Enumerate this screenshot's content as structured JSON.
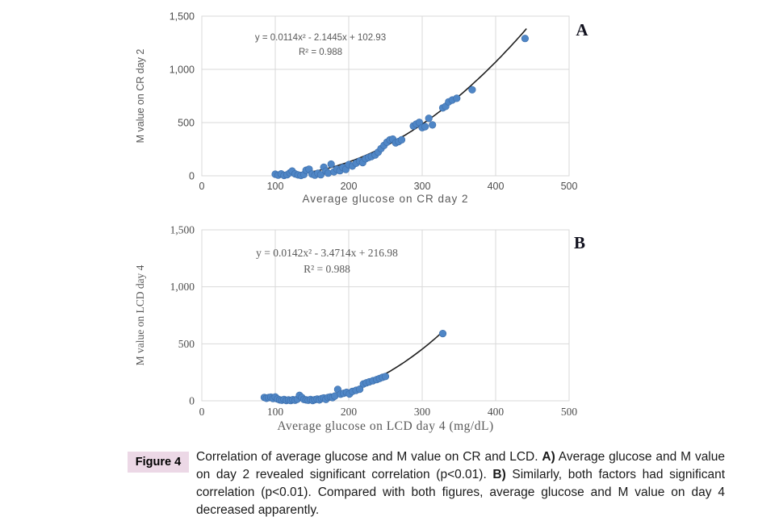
{
  "figure": {
    "label": "Figure 4",
    "caption": {
      "segments": [
        {
          "text": "Correlation of average glucose and M value on CR and LCD. ",
          "bold": false
        },
        {
          "text": "A)",
          "bold": true
        },
        {
          "text": " Average glucose and M value on day 2 revealed significant correlation (p<0.01). ",
          "bold": false
        },
        {
          "text": "B)",
          "bold": true
        },
        {
          "text": " Similarly, both factors had significant correlation (p<0.01). Compared with both figures, average glucose and M value on day 4 decreased apparently.",
          "bold": false
        }
      ]
    }
  },
  "colors": {
    "point": "#4f86c6",
    "point_edge": "#3b6ca8",
    "trend": "#1f1f1f",
    "grid": "#d9d9d9",
    "tick_text": "#4d4d4d",
    "axis_title": "#595959",
    "equation_text": "#595959",
    "panel_label": "#12121f",
    "caption_text": "#1a1a1a",
    "figure_label_bg": "#ecd8e6",
    "figure_label_text": "#000000"
  },
  "chart_data": [
    {
      "type": "scatter",
      "panel_label": "A",
      "xlabel": "Average glucose on CR day 2",
      "ylabel": "M value on CR day 2",
      "xlim": [
        0,
        500
      ],
      "ylim": [
        0,
        1500
      ],
      "xticks": [
        0,
        100,
        200,
        300,
        400,
        500
      ],
      "xtick_labels": [
        "0",
        "100",
        "200",
        "300",
        "400",
        "500"
      ],
      "yticks": [
        0,
        500,
        1000,
        1500
      ],
      "ytick_labels": [
        "0",
        "500",
        "1,000",
        "1,500"
      ],
      "grid": true,
      "legend": "none",
      "equation": "y = 0.0114x² - 2.1445x + 102.93",
      "r_squared": "R² = 0.988",
      "trend": {
        "a": 0.0114,
        "b": -2.1445,
        "c": 102.93,
        "x_start": 97,
        "x_end": 443
      },
      "font": "sans",
      "points": [
        [
          100,
          15
        ],
        [
          104,
          6
        ],
        [
          108,
          18
        ],
        [
          112,
          4
        ],
        [
          116,
          10
        ],
        [
          120,
          28
        ],
        [
          123,
          45
        ],
        [
          127,
          18
        ],
        [
          131,
          8
        ],
        [
          135,
          4
        ],
        [
          139,
          12
        ],
        [
          142,
          52
        ],
        [
          146,
          62
        ],
        [
          150,
          16
        ],
        [
          154,
          6
        ],
        [
          158,
          24
        ],
        [
          162,
          10
        ],
        [
          166,
          80
        ],
        [
          169,
          45
        ],
        [
          172,
          25
        ],
        [
          176,
          110
        ],
        [
          180,
          38
        ],
        [
          184,
          62
        ],
        [
          188,
          48
        ],
        [
          192,
          78
        ],
        [
          196,
          60
        ],
        [
          200,
          105
        ],
        [
          205,
          92
        ],
        [
          210,
          118
        ],
        [
          215,
          138
        ],
        [
          219,
          124
        ],
        [
          223,
          160
        ],
        [
          227,
          172
        ],
        [
          231,
          182
        ],
        [
          236,
          196
        ],
        [
          240,
          222
        ],
        [
          244,
          255
        ],
        [
          248,
          285
        ],
        [
          252,
          315
        ],
        [
          256,
          338
        ],
        [
          260,
          345
        ],
        [
          264,
          310
        ],
        [
          268,
          322
        ],
        [
          272,
          338
        ],
        [
          288,
          468
        ],
        [
          292,
          486
        ],
        [
          296,
          502
        ],
        [
          300,
          452
        ],
        [
          304,
          462
        ],
        [
          309,
          540
        ],
        [
          314,
          478
        ],
        [
          328,
          638
        ],
        [
          332,
          652
        ],
        [
          336,
          695
        ],
        [
          341,
          712
        ],
        [
          347,
          728
        ],
        [
          368,
          808
        ],
        [
          440,
          1290
        ]
      ]
    },
    {
      "type": "scatter",
      "panel_label": "B",
      "xlabel": "Average glucose on LCD day 4 (mg/dL)",
      "ylabel": "M value on LCD day 4",
      "xlim": [
        0,
        500
      ],
      "ylim": [
        0,
        1500
      ],
      "xticks": [
        0,
        100,
        200,
        300,
        400,
        500
      ],
      "xtick_labels": [
        "0",
        "100",
        "200",
        "300",
        "400",
        "500"
      ],
      "yticks": [
        0,
        500,
        1000,
        1500
      ],
      "ytick_labels": [
        "0",
        "500",
        "1,000",
        "1,500"
      ],
      "grid": true,
      "legend": "none",
      "equation": "y = 0.0142x² - 3.4714x + 216.98",
      "r_squared": "R² = 0.988",
      "trend": {
        "a": 0.0142,
        "b": -3.4714,
        "c": 216.98,
        "x_start": 83,
        "x_end": 331
      },
      "font": "serif",
      "points": [
        [
          85,
          30
        ],
        [
          88,
          22
        ],
        [
          91,
          28
        ],
        [
          94,
          32
        ],
        [
          97,
          20
        ],
        [
          100,
          34
        ],
        [
          103,
          16
        ],
        [
          106,
          8
        ],
        [
          109,
          5
        ],
        [
          112,
          12
        ],
        [
          115,
          3
        ],
        [
          118,
          8
        ],
        [
          121,
          2
        ],
        [
          124,
          10
        ],
        [
          127,
          5
        ],
        [
          130,
          14
        ],
        [
          133,
          48
        ],
        [
          136,
          30
        ],
        [
          139,
          12
        ],
        [
          142,
          8
        ],
        [
          145,
          5
        ],
        [
          148,
          12
        ],
        [
          151,
          3
        ],
        [
          154,
          10
        ],
        [
          157,
          15
        ],
        [
          160,
          8
        ],
        [
          163,
          20
        ],
        [
          166,
          25
        ],
        [
          169,
          12
        ],
        [
          172,
          30
        ],
        [
          175,
          34
        ],
        [
          178,
          28
        ],
        [
          181,
          42
        ],
        [
          185,
          100
        ],
        [
          189,
          58
        ],
        [
          193,
          66
        ],
        [
          197,
          74
        ],
        [
          201,
          60
        ],
        [
          205,
          82
        ],
        [
          210,
          92
        ],
        [
          215,
          102
        ],
        [
          220,
          148
        ],
        [
          224,
          158
        ],
        [
          228,
          166
        ],
        [
          233,
          176
        ],
        [
          238,
          186
        ],
        [
          242,
          196
        ],
        [
          246,
          206
        ],
        [
          250,
          214
        ],
        [
          328,
          590
        ]
      ]
    }
  ]
}
